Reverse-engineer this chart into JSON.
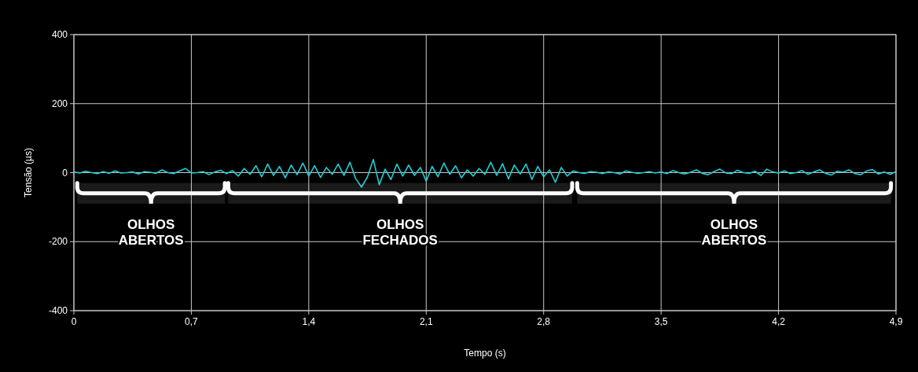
{
  "chart_data": {
    "type": "line",
    "xlabel": "Tempo (s)",
    "ylabel": "Tensão (µs)",
    "xlim": [
      0,
      4.9
    ],
    "xticks": [
      {
        "value": 0,
        "label": "0"
      },
      {
        "value": 0.7,
        "label": "0,7"
      },
      {
        "value": 1.4,
        "label": "1,4"
      },
      {
        "value": 2.1,
        "label": "2,1"
      },
      {
        "value": 2.8,
        "label": "2,8"
      },
      {
        "value": 3.5,
        "label": "3,5"
      },
      {
        "value": 4.2,
        "label": "4,2"
      },
      {
        "value": 4.9,
        "label": "4,9"
      }
    ],
    "ylim": [
      -400,
      400
    ],
    "yticks": [
      -400,
      -200,
      0,
      200,
      400
    ],
    "grid": true,
    "marker": "none",
    "line_style": "solid",
    "bands": [
      {
        "axis": "x",
        "from": 0.02,
        "to": 0.9,
        "label": "OLHOS\nABERTOS",
        "color": "#ffffff"
      },
      {
        "axis": "x",
        "from": 0.92,
        "to": 2.97,
        "label": "OLHOS\nFECHADOS",
        "color": "#ffffff"
      },
      {
        "axis": "x",
        "from": 3.0,
        "to": 4.87,
        "label": "OLHOS\nABERTOS",
        "color": "#ffffff"
      }
    ],
    "series": [
      {
        "color": "#1ecfd6",
        "x": [
          0,
          0.035,
          0.07,
          0.105,
          0.14,
          0.175,
          0.21,
          0.245,
          0.28,
          0.315,
          0.35,
          0.385,
          0.42,
          0.455,
          0.49,
          0.525,
          0.56,
          0.595,
          0.63,
          0.665,
          0.7,
          0.735,
          0.77,
          0.805,
          0.84,
          0.875,
          0.91,
          0.945,
          0.98,
          1.015,
          1.05,
          1.085,
          1.12,
          1.155,
          1.19,
          1.225,
          1.26,
          1.295,
          1.33,
          1.365,
          1.4,
          1.435,
          1.47,
          1.505,
          1.54,
          1.575,
          1.61,
          1.645,
          1.68,
          1.715,
          1.75,
          1.785,
          1.82,
          1.855,
          1.89,
          1.925,
          1.96,
          1.995,
          2.03,
          2.065,
          2.1,
          2.135,
          2.17,
          2.205,
          2.24,
          2.275,
          2.31,
          2.345,
          2.38,
          2.415,
          2.45,
          2.485,
          2.52,
          2.555,
          2.59,
          2.625,
          2.66,
          2.695,
          2.73,
          2.765,
          2.8,
          2.835,
          2.87,
          2.905,
          2.94,
          2.975,
          3.01,
          3.045,
          3.08,
          3.115,
          3.15,
          3.185,
          3.22,
          3.255,
          3.29,
          3.325,
          3.36,
          3.395,
          3.43,
          3.465,
          3.5,
          3.535,
          3.57,
          3.605,
          3.64,
          3.675,
          3.71,
          3.745,
          3.78,
          3.815,
          3.85,
          3.885,
          3.92,
          3.955,
          3.99,
          4.025,
          4.06,
          4.095,
          4.13,
          4.165,
          4.2,
          4.235,
          4.27,
          4.305,
          4.34,
          4.375,
          4.41,
          4.445,
          4.48,
          4.515,
          4.55,
          4.585,
          4.62,
          4.655,
          4.69,
          4.725,
          4.76,
          4.795,
          4.83,
          4.865,
          4.9
        ],
        "values": [
          2,
          -1,
          4,
          0,
          -3,
          3,
          -2,
          5,
          -1,
          0,
          2,
          -4,
          3,
          1,
          -2,
          8,
          0,
          -3,
          5,
          12,
          -1,
          0,
          3,
          -6,
          2,
          7,
          -3,
          6,
          -10,
          12,
          -5,
          20,
          -12,
          25,
          -8,
          18,
          -15,
          22,
          -6,
          28,
          -10,
          20,
          -14,
          15,
          -5,
          25,
          -8,
          30,
          -18,
          -42,
          -12,
          38,
          -35,
          10,
          -20,
          25,
          -10,
          22,
          -8,
          15,
          -25,
          18,
          -12,
          28,
          -5,
          20,
          -15,
          8,
          -10,
          12,
          -5,
          30,
          -8,
          26,
          -18,
          22,
          -4,
          25,
          -20,
          18,
          -12,
          8,
          -28,
          15,
          -10,
          5,
          0,
          -2,
          3,
          1,
          -3,
          2,
          0,
          -4,
          5,
          1,
          -2,
          0,
          3,
          -1,
          2,
          -3,
          6,
          0,
          -4,
          1,
          8,
          -2,
          -6,
          3,
          10,
          -1,
          -3,
          7,
          0,
          -2,
          4,
          -8,
          10,
          2,
          -1,
          5,
          -3,
          0,
          6,
          -5,
          2,
          8,
          -2,
          -7,
          4,
          1,
          8,
          -3,
          -6,
          5,
          9,
          -4,
          2,
          -5,
          3
        ]
      }
    ]
  }
}
